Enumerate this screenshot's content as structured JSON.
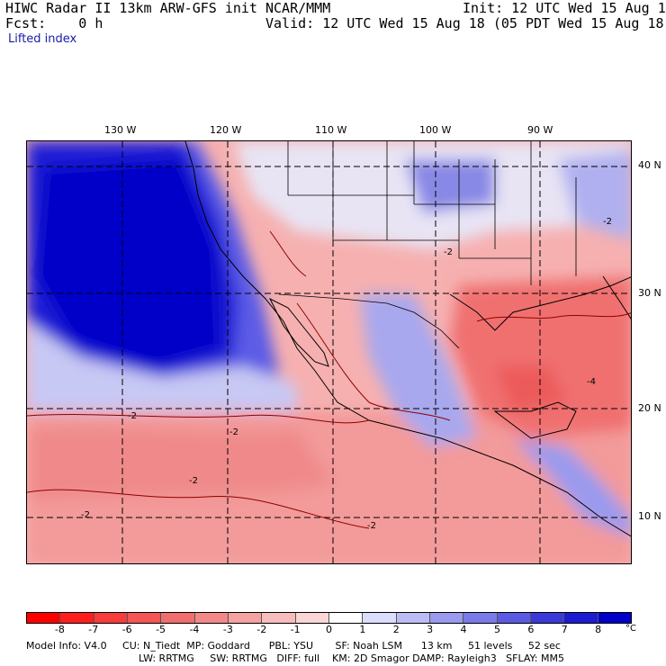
{
  "header": {
    "title": "HIWC Radar II 13km ARW-GFS init",
    "fcst": "Fcst:    0 h",
    "field": "Lifted index",
    "org": "NCAR/MMM",
    "init": "Init: 12 UTC Wed 15 Aug 18",
    "valid": "Valid: 12 UTC Wed 15 Aug 18 (05 PDT Wed 15 Aug 18)"
  },
  "map": {
    "lon_labels": [
      "130 W",
      "120 W",
      "110 W",
      "100 W",
      "90 W"
    ],
    "lat_labels": [
      "40 N",
      "30 N",
      "20 N",
      "10 N"
    ],
    "contour_labels": [
      "-2",
      "-2",
      "-2",
      "-2",
      "-2",
      "-2",
      "-2",
      "-4"
    ]
  },
  "colorbar": {
    "unit": "°C",
    "ticks": [
      "-8",
      "-7",
      "-6",
      "-5",
      "-4",
      "-3",
      "-2",
      "-1",
      "0",
      "1",
      "2",
      "3",
      "4",
      "5",
      "6",
      "7",
      "8"
    ],
    "colors": [
      "#ff0000",
      "#ff1e1e",
      "#f73c3c",
      "#f45555",
      "#f26e6e",
      "#f38888",
      "#f5a2a2",
      "#f8bcbc",
      "#fbd6d6",
      "#ffffff",
      "#dcdcfc",
      "#bcbcf5",
      "#9a9aee",
      "#7a7ae8",
      "#5a5ae2",
      "#3a3ad8",
      "#1c1cd0",
      "#0000c8"
    ]
  },
  "info": {
    "line1": "Model Info: V4.0     CU: N_Tiedt  MP: Goddard      PBL: YSU       SF: Noah LSM      13 km     51 levels     52 sec",
    "line2": "LW: RRTMG     SW: RRTMG   DIFF: full    KM: 2D Smagor DAMP: Rayleigh3   SFLAY: MM5"
  }
}
